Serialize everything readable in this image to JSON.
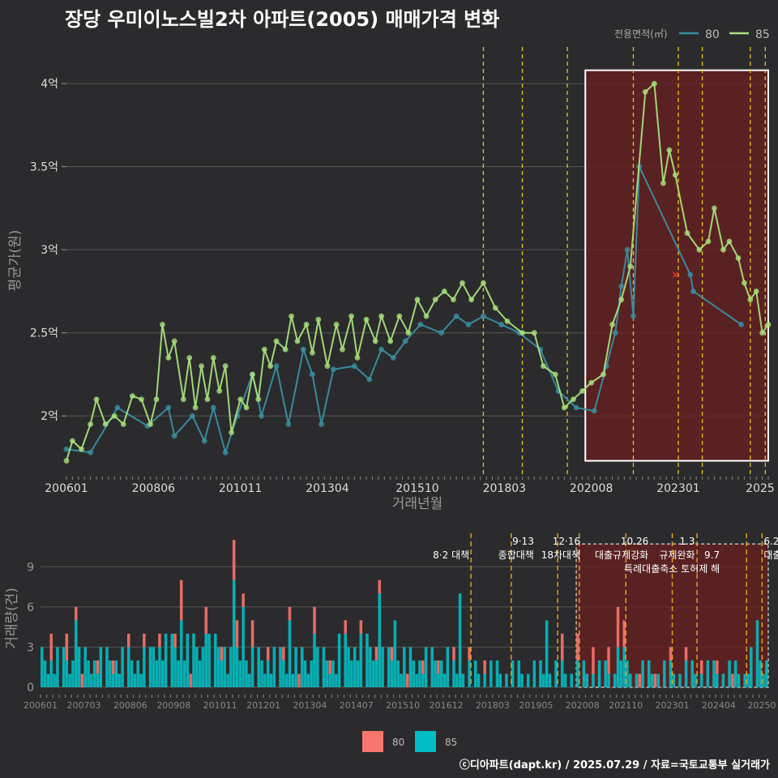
{
  "title": "장당 우미이노스빌2차 아파트(2005) 매매가격 변화",
  "footer": "ⓒ디아파트(dapt.kr) / 2025.07.29 / 자료=국토교통부 실거래가",
  "colors": {
    "bg": "#2b2b2d",
    "grid": "#555555",
    "s80": "#3a8fa3",
    "s85": "#a8e07a",
    "bar80": "#f8766d",
    "bar85": "#00bfc4",
    "vline": "#e6c619",
    "highlight": "#6b1f1f"
  },
  "chart_data": [
    {
      "type": "line",
      "xlabel": "거래년월",
      "ylabel": "평균가(원)",
      "legend_title": "전용면적(㎡)",
      "legend_position": "top-right",
      "x_range": [
        "2006-01",
        "2025-07"
      ],
      "ylim": [
        1.65,
        4.22
      ],
      "y_ticks": [
        2,
        2.5,
        3,
        3.5,
        4
      ],
      "y_tick_labels": [
        "2억",
        "2.5억",
        "3억",
        "3.5억",
        "4억"
      ],
      "x_ticks": [
        "2006-01",
        "2008-06",
        "2010-11",
        "2013-04",
        "2015-10",
        "2018-03",
        "2020-08",
        "2023-01",
        "2025-06"
      ],
      "x_tick_labels": [
        "200601",
        "200806",
        "201011",
        "201304",
        "201510",
        "201803",
        "202008",
        "202301",
        "2025"
      ],
      "policy_lines": [
        "2017-08",
        "2018-09",
        "2019-12",
        "2021-10",
        "2023-01",
        "2023-09",
        "2025-01",
        "2025-06"
      ],
      "highlight_range": [
        "2020-06",
        "2025-07"
      ],
      "marker": {
        "x": "2022-12",
        "y": 2.85
      },
      "series": [
        {
          "name": "80",
          "points": [
            [
              "2006-01",
              1.8
            ],
            [
              "2006-09",
              1.78
            ],
            [
              "2007-06",
              2.05
            ],
            [
              "2008-04",
              1.94
            ],
            [
              "2008-11",
              2.05
            ],
            [
              "2009-01",
              1.88
            ],
            [
              "2009-07",
              2.0
            ],
            [
              "2009-11",
              1.85
            ],
            [
              "2010-02",
              2.05
            ],
            [
              "2010-06",
              1.78
            ],
            [
              "2010-10",
              2.0
            ],
            [
              "2011-03",
              2.25
            ],
            [
              "2011-06",
              2.0
            ],
            [
              "2011-11",
              2.3
            ],
            [
              "2012-03",
              1.95
            ],
            [
              "2012-08",
              2.4
            ],
            [
              "2012-11",
              2.25
            ],
            [
              "2013-02",
              1.95
            ],
            [
              "2013-06",
              2.28
            ],
            [
              "2014-01",
              2.3
            ],
            [
              "2014-06",
              2.22
            ],
            [
              "2014-10",
              2.4
            ],
            [
              "2015-02",
              2.35
            ],
            [
              "2015-06",
              2.45
            ],
            [
              "2015-11",
              2.55
            ],
            [
              "2016-06",
              2.5
            ],
            [
              "2016-11",
              2.6
            ],
            [
              "2017-03",
              2.55
            ],
            [
              "2017-08",
              2.6
            ],
            [
              "2018-02",
              2.55
            ],
            [
              "2018-08",
              2.5
            ],
            [
              "2019-03",
              2.4
            ],
            [
              "2019-09",
              2.15
            ],
            [
              "2020-03",
              2.05
            ],
            [
              "2020-09",
              2.03
            ],
            [
              "2021-01",
              2.3
            ],
            [
              "2021-04",
              2.5
            ],
            [
              "2021-06",
              2.78
            ],
            [
              "2021-08",
              3.0
            ],
            [
              "2021-10",
              2.6
            ],
            [
              "2021-12",
              3.5
            ],
            [
              "2023-05",
              2.85
            ],
            [
              "2023-06",
              2.75
            ],
            [
              "2024-10",
              2.55
            ]
          ]
        },
        {
          "name": "85",
          "points": [
            [
              "2006-01",
              1.73
            ],
            [
              "2006-03",
              1.85
            ],
            [
              "2006-06",
              1.8
            ],
            [
              "2006-09",
              1.95
            ],
            [
              "2006-11",
              2.1
            ],
            [
              "2007-02",
              1.95
            ],
            [
              "2007-05",
              2.0
            ],
            [
              "2007-08",
              1.95
            ],
            [
              "2007-11",
              2.12
            ],
            [
              "2008-02",
              2.1
            ],
            [
              "2008-05",
              1.95
            ],
            [
              "2008-07",
              2.1
            ],
            [
              "2008-09",
              2.55
            ],
            [
              "2008-11",
              2.35
            ],
            [
              "2009-01",
              2.45
            ],
            [
              "2009-04",
              2.1
            ],
            [
              "2009-06",
              2.35
            ],
            [
              "2009-08",
              2.05
            ],
            [
              "2009-10",
              2.3
            ],
            [
              "2009-12",
              2.1
            ],
            [
              "2010-02",
              2.35
            ],
            [
              "2010-04",
              2.15
            ],
            [
              "2010-06",
              2.3
            ],
            [
              "2010-08",
              1.9
            ],
            [
              "2010-11",
              2.1
            ],
            [
              "2011-01",
              2.05
            ],
            [
              "2011-03",
              2.25
            ],
            [
              "2011-05",
              2.1
            ],
            [
              "2011-07",
              2.4
            ],
            [
              "2011-09",
              2.3
            ],
            [
              "2011-11",
              2.45
            ],
            [
              "2012-02",
              2.4
            ],
            [
              "2012-04",
              2.6
            ],
            [
              "2012-06",
              2.45
            ],
            [
              "2012-09",
              2.55
            ],
            [
              "2012-11",
              2.38
            ],
            [
              "2013-01",
              2.58
            ],
            [
              "2013-04",
              2.3
            ],
            [
              "2013-07",
              2.55
            ],
            [
              "2013-09",
              2.4
            ],
            [
              "2013-12",
              2.6
            ],
            [
              "2014-02",
              2.35
            ],
            [
              "2014-05",
              2.58
            ],
            [
              "2014-08",
              2.45
            ],
            [
              "2014-10",
              2.6
            ],
            [
              "2015-01",
              2.45
            ],
            [
              "2015-04",
              2.6
            ],
            [
              "2015-07",
              2.5
            ],
            [
              "2015-10",
              2.7
            ],
            [
              "2016-01",
              2.6
            ],
            [
              "2016-04",
              2.7
            ],
            [
              "2016-07",
              2.75
            ],
            [
              "2016-10",
              2.7
            ],
            [
              "2017-01",
              2.8
            ],
            [
              "2017-04",
              2.7
            ],
            [
              "2017-08",
              2.8
            ],
            [
              "2017-12",
              2.65
            ],
            [
              "2018-04",
              2.57
            ],
            [
              "2018-09",
              2.5
            ],
            [
              "2019-01",
              2.5
            ],
            [
              "2019-04",
              2.3
            ],
            [
              "2019-08",
              2.25
            ],
            [
              "2019-11",
              2.05
            ],
            [
              "2020-02",
              2.1
            ],
            [
              "2020-05",
              2.15
            ],
            [
              "2020-08",
              2.2
            ],
            [
              "2020-12",
              2.25
            ],
            [
              "2021-03",
              2.55
            ],
            [
              "2021-06",
              2.7
            ],
            [
              "2021-09",
              2.9
            ],
            [
              "2022-02",
              3.95
            ],
            [
              "2022-05",
              4.0
            ],
            [
              "2022-08",
              3.4
            ],
            [
              "2022-10",
              3.6
            ],
            [
              "2022-12",
              3.45
            ],
            [
              "2023-04",
              3.1
            ],
            [
              "2023-08",
              3.0
            ],
            [
              "2023-11",
              3.05
            ],
            [
              "2024-01",
              3.25
            ],
            [
              "2024-04",
              3.0
            ],
            [
              "2024-06",
              3.05
            ],
            [
              "2024-09",
              2.95
            ],
            [
              "2024-11",
              2.8
            ],
            [
              "2025-01",
              2.7
            ],
            [
              "2025-03",
              2.75
            ],
            [
              "2025-05",
              2.5
            ],
            [
              "2025-07",
              2.55
            ]
          ]
        }
      ]
    },
    {
      "type": "bar",
      "stacked": true,
      "ylabel": "거래량(건)",
      "ylim": [
        0,
        11.5
      ],
      "y_ticks": [
        0,
        3,
        6,
        9
      ],
      "x_ticks": [
        "2006-01",
        "2007-03",
        "2008-06",
        "2009-08",
        "2010-11",
        "2012-01",
        "2013-04",
        "2014-07",
        "2015-10",
        "2016-12",
        "2018-03",
        "2019-05",
        "2020-08",
        "2021-10",
        "2023-01",
        "2024-04",
        "2025-07"
      ],
      "x_tick_labels": [
        "200601",
        "200703",
        "200806",
        "200908",
        "201011",
        "201201",
        "201304",
        "201407",
        "201510",
        "201612",
        "201803",
        "201905",
        "202008",
        "202110",
        "202301",
        "202404",
        "20250"
      ],
      "highlight_range": [
        "2020-06",
        "2025-07"
      ],
      "policy_lines": [
        "2017-08",
        "2018-09",
        "2019-12",
        "2020-07",
        "2021-10",
        "2023-01",
        "2023-09",
        "2025-01",
        "2025-06"
      ],
      "annotations": [
        {
          "x": "2017-08",
          "row": 1,
          "text": "8·2 대책"
        },
        {
          "x": "2018-09",
          "row": 0,
          "text": "9·13"
        },
        {
          "x": "2018-09",
          "row": 1,
          "text": "종합대책"
        },
        {
          "x": "2019-12",
          "row": 0,
          "text": "12·16"
        },
        {
          "x": "2019-12",
          "row": 1,
          "text": "18차대책"
        },
        {
          "x": "2021-10",
          "row": 0,
          "text": "10.26"
        },
        {
          "x": "2021-10",
          "row": 1,
          "text": "대출규제강화"
        },
        {
          "x": "2023-01",
          "row": 0,
          "text": "1.3"
        },
        {
          "x": "2023-01",
          "row": 1,
          "text": "규제완화"
        },
        {
          "x": "2023-09",
          "row": 1,
          "text": "9.7"
        },
        {
          "x": "2023-09",
          "row": 2,
          "text": "특례대출축소 토허제 해"
        },
        {
          "x": "2025-06",
          "row": 0,
          "text": "6.2"
        },
        {
          "x": "2025-06",
          "row": 1,
          "text": "대출"
        }
      ],
      "series": [
        {
          "name": "80",
          "by_year": [
            2,
            1,
            1,
            1,
            1,
            2,
            1,
            1,
            1,
            1,
            1,
            1,
            0,
            0,
            2,
            2,
            1,
            1,
            1,
            0
          ]
        },
        {
          "name": "85",
          "by_year": [
            2,
            2,
            2,
            3,
            3,
            2,
            2,
            2,
            3,
            2,
            2,
            1,
            1,
            1,
            1,
            1,
            1,
            1,
            1,
            2
          ]
        }
      ],
      "peaks": [
        {
          "x": "2006-12",
          "v80": 1,
          "v85": 5
        },
        {
          "x": "2009-10",
          "v80": 3,
          "v85": 5
        },
        {
          "x": "2010-06",
          "v80": 2,
          "v85": 4
        },
        {
          "x": "2011-03",
          "v80": 3,
          "v85": 8
        },
        {
          "x": "2011-06",
          "v80": 1,
          "v85": 6
        },
        {
          "x": "2012-09",
          "v80": 1,
          "v85": 5
        },
        {
          "x": "2013-05",
          "v80": 2,
          "v85": 4
        },
        {
          "x": "2015-02",
          "v80": 1,
          "v85": 7
        },
        {
          "x": "2015-07",
          "v80": 0,
          "v85": 5
        },
        {
          "x": "2017-04",
          "v80": 0,
          "v85": 7
        },
        {
          "x": "2019-08",
          "v80": 0,
          "v85": 5
        },
        {
          "x": "2021-07",
          "v80": 3,
          "v85": 3
        },
        {
          "x": "2021-09",
          "v80": 2,
          "v85": 3
        },
        {
          "x": "2025-04",
          "v80": 0,
          "v85": 5
        }
      ]
    }
  ],
  "bottom_legend": [
    {
      "name": "80"
    },
    {
      "name": "85"
    }
  ]
}
